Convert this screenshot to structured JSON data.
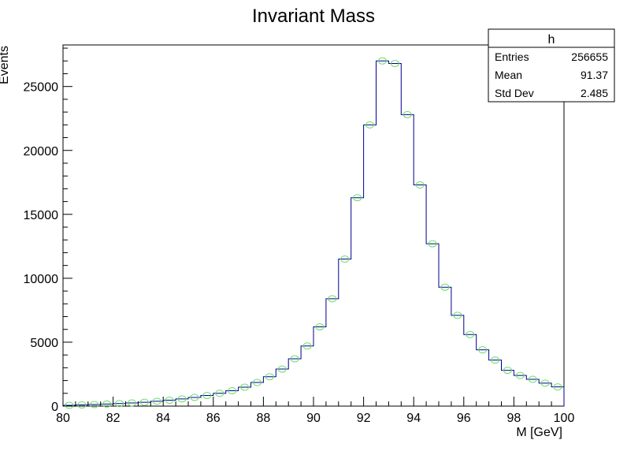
{
  "chart_data": {
    "type": "bar",
    "title": "Invariant Mass",
    "xlabel": "M [GeV]",
    "ylabel": "Events",
    "xlim": [
      80,
      100
    ],
    "ylim": [
      0,
      28250
    ],
    "xticks": [
      80,
      82,
      84,
      86,
      88,
      90,
      92,
      94,
      96,
      98,
      100
    ],
    "xtick_labels": [
      "80",
      "82",
      "84",
      "86",
      "88",
      "90",
      "92",
      "94",
      "96",
      "98",
      "100"
    ],
    "yticks": [
      0,
      5000,
      10000,
      15000,
      20000,
      25000
    ],
    "ytick_labels": [
      "0",
      "5000",
      "10000",
      "15000",
      "20000",
      "25000"
    ],
    "bin_width": 0.5,
    "bin_low_edges": [
      80,
      80.5,
      81,
      81.5,
      82,
      82.5,
      83,
      83.5,
      84,
      84.5,
      85,
      85.5,
      86,
      86.5,
      87,
      87.5,
      88,
      88.5,
      89,
      89.5,
      90,
      90.5,
      91,
      91.5,
      92,
      92.5,
      93,
      93.5,
      94,
      94.5,
      95,
      95.5,
      96,
      96.5,
      97,
      97.5,
      98,
      98.5,
      99,
      99.5
    ],
    "values": [
      60,
      90,
      120,
      160,
      200,
      250,
      300,
      380,
      460,
      560,
      680,
      830,
      1000,
      1200,
      1480,
      1850,
      2300,
      2900,
      3700,
      4700,
      6200,
      8400,
      11500,
      16300,
      22000,
      27000,
      26800,
      22800,
      17300,
      12700,
      9300,
      7100,
      5600,
      4400,
      3600,
      2800,
      2400,
      2100,
      1800,
      1500
    ],
    "stats_box": {
      "title": "h",
      "rows": [
        {
          "label": "Entries",
          "value": "256655"
        },
        {
          "label": "Mean",
          "value": "91.37"
        },
        {
          "label": "Std Dev",
          "value": "2.485"
        }
      ]
    },
    "colors": {
      "histogram_line": "#00008b",
      "fit_marker": "#66dd66",
      "frame": "#000000"
    },
    "grid": false
  }
}
